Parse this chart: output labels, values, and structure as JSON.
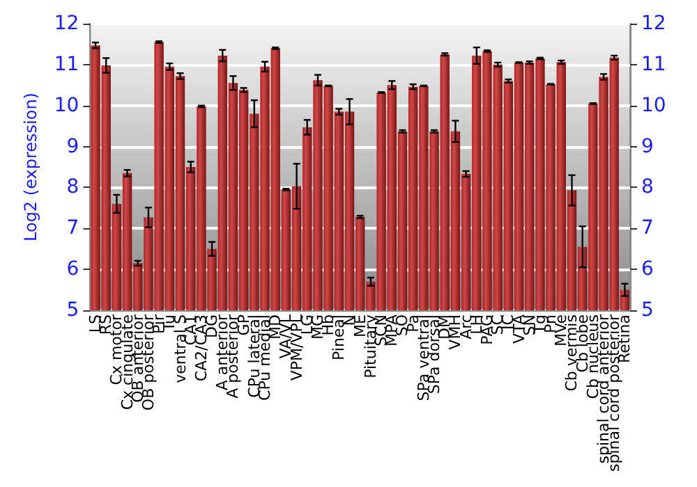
{
  "chart_data": {
    "type": "bar",
    "ylabel": "Log2 (expression)",
    "categories": [
      "LS",
      "RS",
      "Cx motor",
      "Cx cingulate",
      "OB anterior",
      "OB posterior",
      "Pir",
      "Tu",
      "ventral S",
      "CA1",
      "CA2/CA3",
      "DG",
      "A anterior",
      "A posterior",
      "GP",
      "CPu lateral",
      "CPu medial",
      "MD",
      "VA/VL",
      "VPM/VPL",
      "LG",
      "MG",
      "Hb",
      "Pineal",
      "N",
      "ME",
      "Pituitary",
      "SCN",
      "MPA",
      "SO",
      "Pa",
      "SPa ventral",
      "SPa dorsal",
      "DM",
      "VMH",
      "Arc",
      "LH",
      "PAG",
      "SC",
      "IC",
      "VTA",
      "SN",
      "Tg",
      "Pn",
      "MVe",
      "Cb vermis",
      "Cb lobe",
      "Cb nucleus",
      "spinal cord anterior",
      "spinal cord posterior",
      "Retina"
    ],
    "values": [
      11.47,
      10.98,
      7.6,
      8.35,
      6.15,
      7.27,
      11.55,
      10.95,
      10.72,
      8.5,
      9.98,
      6.5,
      11.22,
      10.55,
      10.38,
      9.8,
      10.95,
      11.4,
      7.95,
      8.03,
      9.47,
      10.62,
      10.48,
      9.85,
      9.85,
      7.28,
      5.7,
      10.32,
      10.5,
      9.37,
      10.46,
      10.48,
      9.37,
      11.25,
      9.37,
      8.33,
      11.22,
      11.33,
      11.0,
      10.6,
      11.05,
      11.05,
      11.15,
      10.52,
      11.06,
      7.93,
      6.55,
      10.05,
      10.7,
      11.17,
      5.5
    ],
    "errors": [
      0.07,
      0.18,
      0.22,
      0.08,
      0.06,
      0.24,
      0.02,
      0.08,
      0.07,
      0.13,
      0.02,
      0.17,
      0.14,
      0.17,
      0.05,
      0.33,
      0.12,
      0.02,
      0.02,
      0.55,
      0.18,
      0.13,
      0.01,
      0.07,
      0.31,
      0.03,
      0.1,
      0.01,
      0.1,
      0.03,
      0.06,
      0.01,
      0.03,
      0.03,
      0.26,
      0.07,
      0.2,
      0.02,
      0.05,
      0.04,
      0.01,
      0.03,
      0.02,
      0.01,
      0.04,
      0.37,
      0.5,
      0.01,
      0.07,
      0.05,
      0.15
    ],
    "color": "#b22222",
    "ylim": [
      5,
      12
    ],
    "yticks": [
      5,
      6,
      7,
      8,
      9,
      10,
      11,
      12
    ],
    "y2lim": [
      5,
      12
    ],
    "y2ticks": [
      5,
      6,
      7,
      8,
      9,
      10,
      11,
      12
    ],
    "grid": "y"
  }
}
